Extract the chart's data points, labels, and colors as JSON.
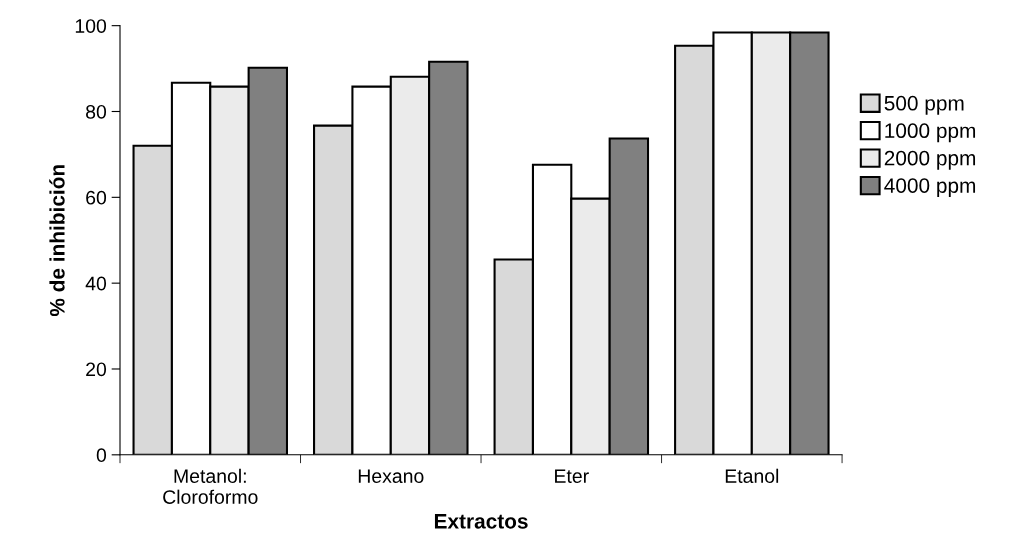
{
  "chart_data": {
    "type": "bar",
    "xlabel": "Extractos",
    "ylabel": "% de inhibición",
    "categories": [
      "Metanol:\nCloroformo",
      "Hexano",
      "Eter",
      "Etanol"
    ],
    "series": [
      {
        "name": "500 ppm",
        "color": "#d9d9d9",
        "values": [
          72,
          76.7,
          45.5,
          95.3
        ]
      },
      {
        "name": "1000 ppm",
        "color": "#ffffff",
        "values": [
          86.7,
          85.8,
          67.6,
          98.4
        ]
      },
      {
        "name": "2000 ppm",
        "color": "#ebebeb",
        "values": [
          85.8,
          88.1,
          59.7,
          98.4
        ]
      },
      {
        "name": "4000 ppm",
        "color": "#808080",
        "values": [
          90.2,
          91.6,
          73.7,
          98.4
        ]
      }
    ],
    "ylim": [
      0,
      100
    ],
    "yticks": [
      0,
      20,
      40,
      60,
      80,
      100
    ],
    "grid": false,
    "legend": "right"
  }
}
